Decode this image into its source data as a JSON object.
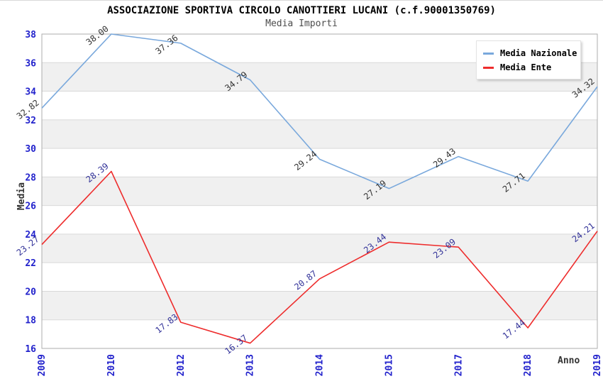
{
  "header": {
    "title": "ASSOCIAZIONE SPORTIVA CIRCOLO CANOTTIERI LUCANI (c.f.90001350769)",
    "subtitle": "Media Importi"
  },
  "chart_data": {
    "type": "line",
    "title": "ASSOCIAZIONE SPORTIVA CIRCOLO CANOTTIERI LUCANI (c.f.90001350769)",
    "subtitle": "Media Importi",
    "categories": [
      "2009",
      "2010",
      "2012",
      "2013",
      "2014",
      "2015",
      "2017",
      "2018",
      "2019"
    ],
    "series": [
      {
        "name": "Media Nazionale",
        "color": "#79A8DC",
        "label_color": "#333333",
        "values": [
          32.82,
          38.0,
          37.36,
          34.79,
          29.24,
          27.19,
          29.43,
          27.71,
          34.32
        ]
      },
      {
        "name": "Media Ente",
        "color": "#EE2C2C",
        "label_color": "#333399",
        "values": [
          23.27,
          28.39,
          17.83,
          16.37,
          20.87,
          23.44,
          23.09,
          17.44,
          24.21
        ]
      }
    ],
    "xlabel": "Anno",
    "ylabel": "Media",
    "ylim": [
      16,
      38
    ],
    "ytick_step": 2,
    "grid": true,
    "alternating_bands": true,
    "band_color": "#F0F0F0",
    "gridline_color": "#D9D9D9",
    "plot_border_color": "#ADADAD",
    "tick_label_color": "#2222CC",
    "legend_position": "top-right"
  }
}
